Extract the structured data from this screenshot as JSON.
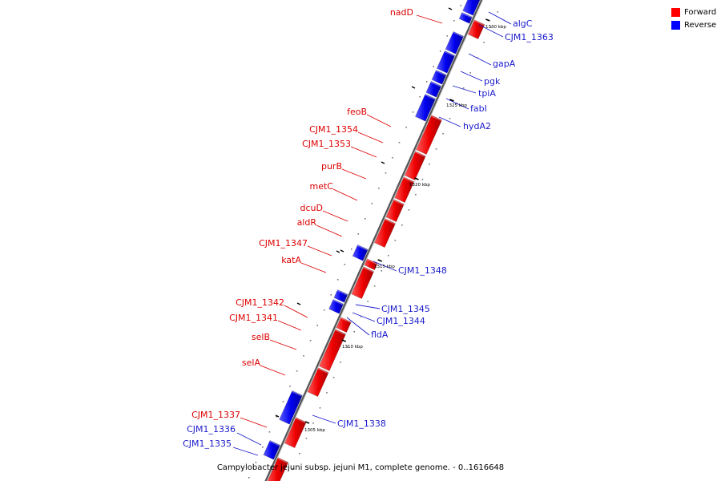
{
  "legend": {
    "forward": {
      "label": "Forward",
      "color": "#ff0000"
    },
    "reverse": {
      "label": "Reverse",
      "color": "#0000ff"
    }
  },
  "caption": "Campylobacter jejuni subsp. jejuni M1, complete genome. - 0..1616648",
  "scale": {
    "ticks": [
      "1305 kbp",
      "1310 kbp",
      "1315 kbp",
      "1320 kbp",
      "1325 kbp",
      "1330 kbp"
    ]
  },
  "genes": {
    "forward": [
      "nadD",
      "feoB",
      "CJM1_1354",
      "CJM1_1353",
      "purB",
      "metC",
      "dcuD",
      "aldR",
      "CJM1_1347",
      "katA",
      "CJM1_1342",
      "CJM1_1341",
      "selB",
      "selA",
      "CJM1_1337"
    ],
    "reverse": [
      "algC",
      "CJM1_1363",
      "gapA",
      "pgk",
      "tpiA",
      "fabI",
      "hydA2",
      "CJM1_1348",
      "CJM1_1345",
      "CJM1_1344",
      "fldA",
      "CJM1_1338",
      "CJM1_1336",
      "CJM1_1335"
    ]
  }
}
